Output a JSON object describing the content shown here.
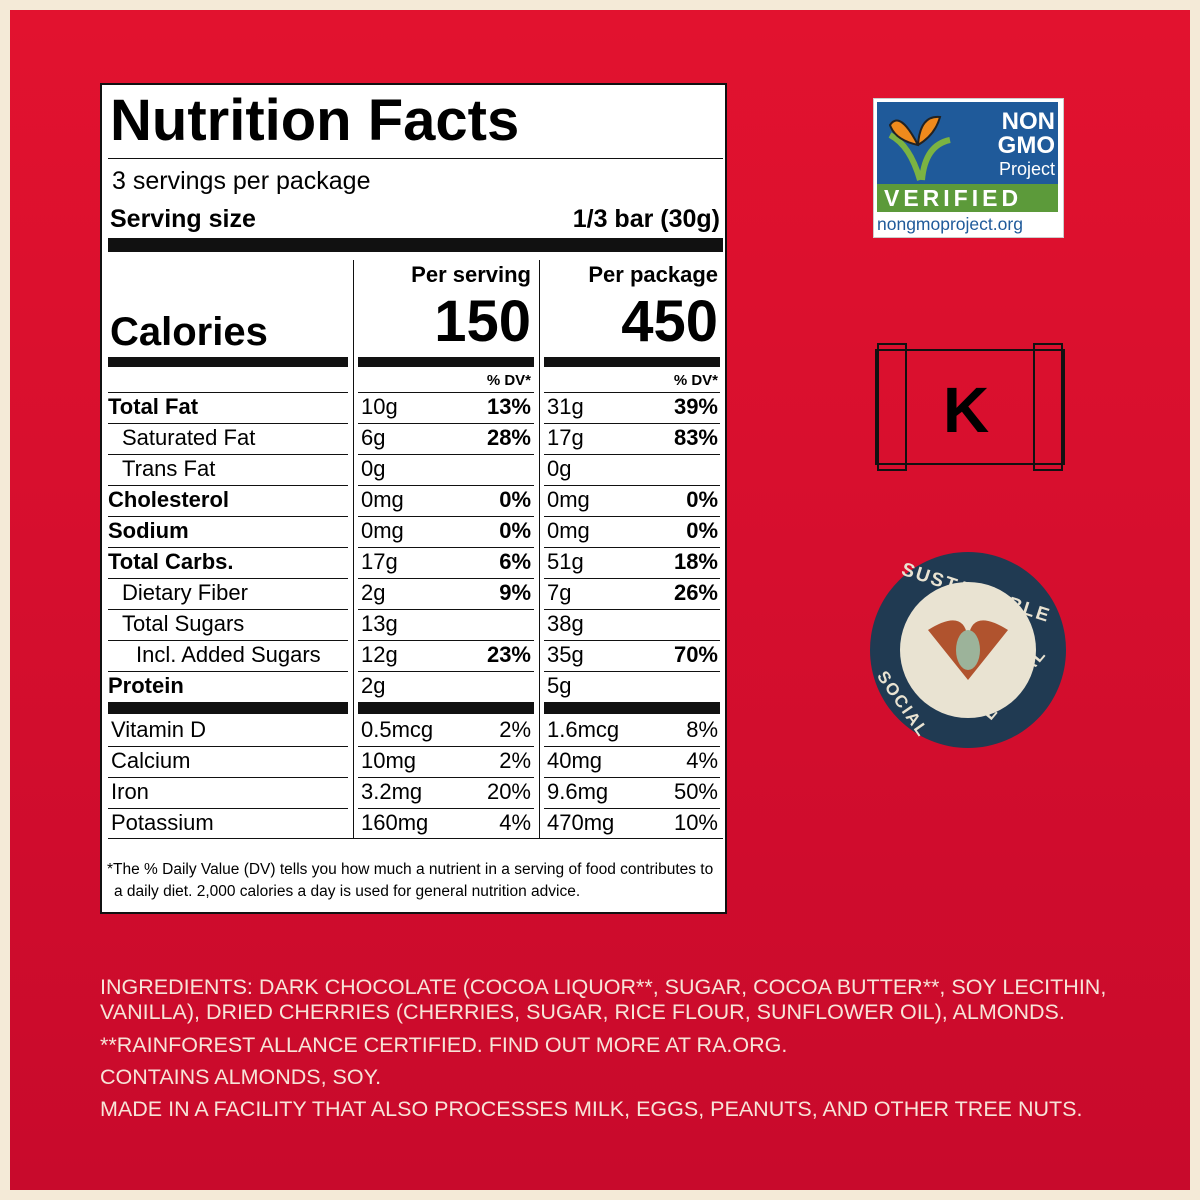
{
  "label": {
    "title": "Nutrition Facts",
    "servings": "3 servings per package",
    "serving_size_label": "Serving size",
    "serving_size_value": "1/3 bar (30g)",
    "per_serving": "Per serving",
    "per_package": "Per package",
    "calories_label": "Calories",
    "calories_serving": "150",
    "calories_package": "450",
    "dv_header_serving": "% DV*",
    "dv_header_package": "% DV*",
    "rows": [
      {
        "name": "Total Fat",
        "serving": "10g",
        "serving_dv": "13%",
        "package": "31g",
        "package_dv": "39%"
      },
      {
        "name": "Saturated Fat",
        "serving": "6g",
        "serving_dv": "28%",
        "package": "17g",
        "package_dv": "83%"
      },
      {
        "name": "Trans Fat",
        "serving": "0g",
        "serving_dv": null,
        "package": "0g",
        "package_dv": null
      },
      {
        "name": "Cholesterol",
        "serving": "0mg",
        "serving_dv": "0%",
        "package": "0mg",
        "package_dv": "0%"
      },
      {
        "name": "Sodium",
        "serving": "0mg",
        "serving_dv": "0%",
        "package": "0mg",
        "package_dv": "0%"
      },
      {
        "name": "Total Carbs.",
        "serving": "17g",
        "serving_dv": "6%",
        "package": "51g",
        "package_dv": "18%"
      },
      {
        "name": "Dietary Fiber",
        "serving": "2g",
        "serving_dv": "9%",
        "package": "7g",
        "package_dv": "26%"
      },
      {
        "name": "Total Sugars",
        "serving": "13g",
        "serving_dv": null,
        "package": "38g",
        "package_dv": null
      },
      {
        "name": "Incl. Added Sugars",
        "serving": "12g",
        "serving_dv": "23%",
        "package": "35g",
        "package_dv": "70%"
      },
      {
        "name": "Protein",
        "serving": "2g",
        "serving_dv": null,
        "package": "5g",
        "package_dv": null
      }
    ],
    "vitamins": [
      {
        "name": "Vitamin D",
        "serving": "0.5mcg",
        "serving_dv": "2%",
        "package": "1.6mcg",
        "package_dv": "8%"
      },
      {
        "name": "Calcium",
        "serving": "10mg",
        "serving_dv": "2%",
        "package": "40mg",
        "package_dv": "4%"
      },
      {
        "name": "Iron",
        "serving": "3.2mg",
        "serving_dv": "20%",
        "package": "9.6mg",
        "package_dv": "50%"
      },
      {
        "name": "Potassium",
        "serving": "160mg",
        "serving_dv": "4%",
        "package": "470mg",
        "package_dv": "10%"
      }
    ],
    "footnote": [
      "*The % Daily Value (DV) tells you how much a nutrient in a serving of food contributes to",
      "a daily diet. 2,000 calories a day is used for general nutrition advice."
    ]
  },
  "badges": {
    "non_gmo": [
      "NON",
      "GMO",
      "Project",
      "VERIFIED",
      "nongmoproject.org"
    ],
    "kosher": "K",
    "sustainable": [
      "SUSTAINABLE",
      "SOCIAL",
      "ETHICAL"
    ]
  },
  "ingredients": [
    "INGREDIENTS: DARK CHOCOLATE (COCOA LIQUOR**, SUGAR, COCOA BUTTER**, SOY LECITHIN,",
    "VANILLA), DRIED CHERRIES (CHERRIES, SUGAR, RICE FLOUR, SUNFLOWER OIL), ALMONDS.",
    "**RAINFOREST ALLANCE CERTIFIED. FIND OUT MORE AT RA.ORG.",
    "CONTAINS ALMONDS, SOY.",
    "MADE IN A FACILITY THAT ALSO PROCESSES MILK, EGGS, PEANUTS, AND OTHER TREE NUTS."
  ]
}
